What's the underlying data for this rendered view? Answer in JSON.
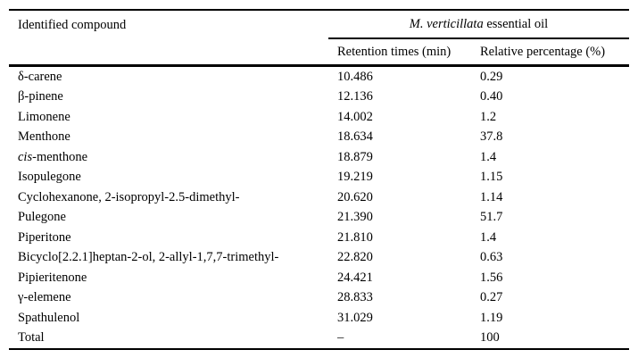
{
  "colors": {
    "text": "#000000",
    "background": "#ffffff",
    "rule": "#000000"
  },
  "table": {
    "header": {
      "compound_col": "Identified compound",
      "group": [
        {
          "text": "M. verticillata",
          "italic": true
        },
        {
          "text": " essential oil",
          "italic": false
        }
      ],
      "sub_columns": [
        "Retention times (min)",
        "Relative percentage (%)"
      ]
    },
    "rows": [
      {
        "compound": [
          {
            "text": "δ-carene",
            "italic": false
          }
        ],
        "retention": "10.486",
        "percentage": "0.29"
      },
      {
        "compound": [
          {
            "text": "β-pinene",
            "italic": false
          }
        ],
        "retention": "12.136",
        "percentage": "0.40"
      },
      {
        "compound": [
          {
            "text": "Limonene",
            "italic": false
          }
        ],
        "retention": "14.002",
        "percentage": "1.2"
      },
      {
        "compound": [
          {
            "text": "Menthone",
            "italic": false
          }
        ],
        "retention": "18.634",
        "percentage": "37.8"
      },
      {
        "compound": [
          {
            "text": "cis",
            "italic": true
          },
          {
            "text": "-menthone",
            "italic": false
          }
        ],
        "retention": "18.879",
        "percentage": "1.4"
      },
      {
        "compound": [
          {
            "text": "Isopulegone",
            "italic": false
          }
        ],
        "retention": "19.219",
        "percentage": "1.15"
      },
      {
        "compound": [
          {
            "text": "Cyclohexanone, 2-isopropyl-2.5-dimethyl-",
            "italic": false
          }
        ],
        "retention": "20.620",
        "percentage": "1.14"
      },
      {
        "compound": [
          {
            "text": "Pulegone",
            "italic": false
          }
        ],
        "retention": "21.390",
        "percentage": "51.7"
      },
      {
        "compound": [
          {
            "text": "Piperitone",
            "italic": false
          }
        ],
        "retention": "21.810",
        "percentage": "1.4"
      },
      {
        "compound": [
          {
            "text": "Bicyclo[2.2.1]heptan-2-ol, 2-allyl-1,7,7-trimethyl-",
            "italic": false
          }
        ],
        "retention": "22.820",
        "percentage": "0.63"
      },
      {
        "compound": [
          {
            "text": "Pipieritenone",
            "italic": false
          }
        ],
        "retention": "24.421",
        "percentage": "1.56"
      },
      {
        "compound": [
          {
            "text": "γ-elemene",
            "italic": false
          }
        ],
        "retention": "28.833",
        "percentage": "0.27"
      },
      {
        "compound": [
          {
            "text": "Spathulenol",
            "italic": false
          }
        ],
        "retention": "31.029",
        "percentage": "1.19"
      },
      {
        "compound": [
          {
            "text": "Total",
            "italic": false
          }
        ],
        "retention": "–",
        "percentage": "100"
      }
    ]
  }
}
